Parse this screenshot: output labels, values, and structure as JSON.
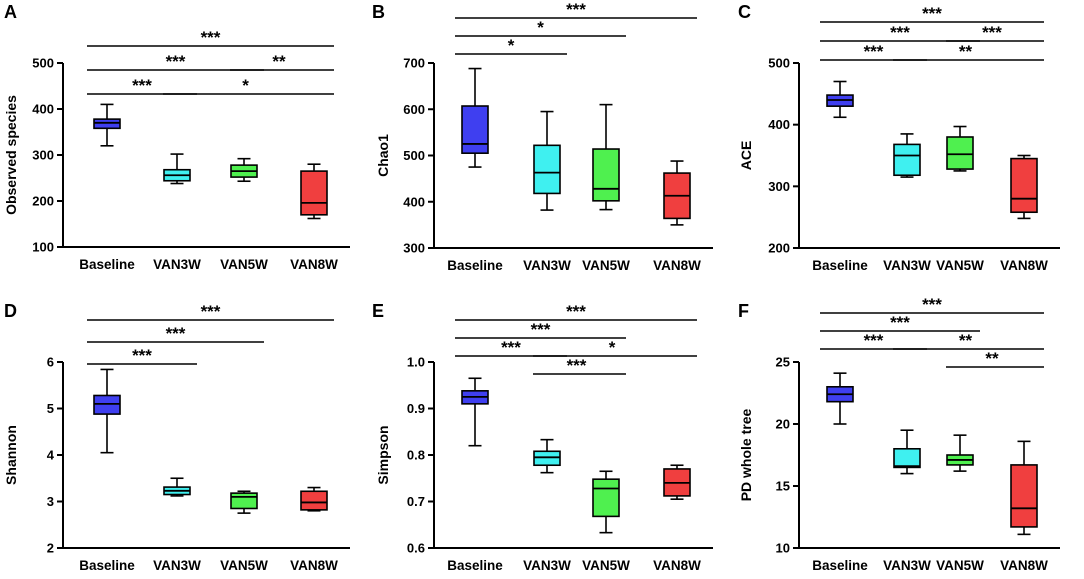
{
  "palette": {
    "Baseline": "#3f3ff0",
    "VAN3W": "#3ff0f0",
    "VAN5W": "#4ff04f",
    "VAN8W": "#f03f3f"
  },
  "chart_data": [
    {
      "panel": "A",
      "type": "box",
      "ylabel": "Observed species",
      "categories": [
        "Baseline",
        "VAN3W",
        "VAN5W",
        "VAN8W"
      ],
      "ylim": [
        100,
        500
      ],
      "yticks": [
        100,
        200,
        300,
        400,
        500
      ],
      "boxes": [
        {
          "min": 320,
          "q1": 358,
          "median": 370,
          "q3": 378,
          "max": 410
        },
        {
          "min": 238,
          "q1": 244,
          "median": 256,
          "q3": 268,
          "max": 302
        },
        {
          "min": 243,
          "q1": 252,
          "median": 265,
          "q3": 278,
          "max": 292
        },
        {
          "min": 162,
          "q1": 170,
          "median": 196,
          "q3": 265,
          "max": 280
        }
      ],
      "comparisons": [
        {
          "from": 0,
          "to": 3,
          "label": "***",
          "level": 0
        },
        {
          "from": 0,
          "to": 2,
          "label": "***",
          "level": 1
        },
        {
          "from": 2,
          "to": 3,
          "label": "**",
          "level": 1
        },
        {
          "from": 0,
          "to": 1,
          "label": "***",
          "level": 2
        },
        {
          "from": 1,
          "to": 3,
          "label": "*",
          "level": 2
        }
      ]
    },
    {
      "panel": "B",
      "type": "box",
      "ylabel": "Chao1",
      "categories": [
        "Baseline",
        "VAN3W",
        "VAN5W",
        "VAN8W"
      ],
      "ylim": [
        300,
        700
      ],
      "yticks": [
        300,
        400,
        500,
        600,
        700
      ],
      "boxes": [
        {
          "min": 475,
          "q1": 505,
          "median": 525,
          "q3": 607,
          "max": 688
        },
        {
          "min": 382,
          "q1": 418,
          "median": 463,
          "q3": 522,
          "max": 595
        },
        {
          "min": 383,
          "q1": 402,
          "median": 428,
          "q3": 514,
          "max": 610
        },
        {
          "min": 350,
          "q1": 364,
          "median": 413,
          "q3": 462,
          "max": 488
        }
      ],
      "comparisons": [
        {
          "from": 0,
          "to": 3,
          "label": "***",
          "level": 0
        },
        {
          "from": 0,
          "to": 2,
          "label": "*",
          "level": 1
        },
        {
          "from": 0,
          "to": 1,
          "label": "*",
          "level": 2
        }
      ]
    },
    {
      "panel": "C",
      "type": "box",
      "ylabel": "ACE",
      "categories": [
        "Baseline",
        "VAN3W",
        "VAN5W",
        "VAN8W"
      ],
      "ylim": [
        200,
        500
      ],
      "yticks": [
        200,
        300,
        400,
        500
      ],
      "boxes": [
        {
          "min": 412,
          "q1": 430,
          "median": 440,
          "q3": 448,
          "max": 470
        },
        {
          "min": 315,
          "q1": 318,
          "median": 350,
          "q3": 368,
          "max": 385
        },
        {
          "min": 325,
          "q1": 328,
          "median": 352,
          "q3": 380,
          "max": 397
        },
        {
          "min": 248,
          "q1": 258,
          "median": 280,
          "q3": 345,
          "max": 350
        }
      ],
      "comparisons": [
        {
          "from": 0,
          "to": 3,
          "label": "***",
          "level": 0
        },
        {
          "from": 0,
          "to": 2,
          "label": "***",
          "level": 1
        },
        {
          "from": 2,
          "to": 3,
          "label": "***",
          "level": 1
        },
        {
          "from": 0,
          "to": 1,
          "label": "***",
          "level": 2
        },
        {
          "from": 1,
          "to": 3,
          "label": "**",
          "level": 2
        }
      ]
    },
    {
      "panel": "D",
      "type": "box",
      "ylabel": "Shannon",
      "categories": [
        "Baseline",
        "VAN3W",
        "VAN5W",
        "VAN8W"
      ],
      "ylim": [
        2,
        6
      ],
      "yticks": [
        2,
        3,
        4,
        5,
        6
      ],
      "boxes": [
        {
          "min": 4.05,
          "q1": 4.88,
          "median": 5.1,
          "q3": 5.28,
          "max": 5.84
        },
        {
          "min": 3.12,
          "q1": 3.15,
          "median": 3.23,
          "q3": 3.31,
          "max": 3.5
        },
        {
          "min": 2.75,
          "q1": 2.85,
          "median": 3.1,
          "q3": 3.18,
          "max": 3.22
        },
        {
          "min": 2.8,
          "q1": 2.82,
          "median": 2.98,
          "q3": 3.22,
          "max": 3.3
        }
      ],
      "comparisons": [
        {
          "from": 0,
          "to": 3,
          "label": "***",
          "level": 0
        },
        {
          "from": 0,
          "to": 2,
          "label": "***",
          "level": 1
        },
        {
          "from": 0,
          "to": 1,
          "label": "***",
          "level": 2
        }
      ]
    },
    {
      "panel": "E",
      "type": "box",
      "ylabel": "Simpson",
      "categories": [
        "Baseline",
        "VAN3W",
        "VAN5W",
        "VAN8W"
      ],
      "ylim": [
        0.6,
        1.0
      ],
      "yticks": [
        0.6,
        0.7,
        0.8,
        0.9,
        1.0
      ],
      "tick_decimals": 1,
      "boxes": [
        {
          "min": 0.82,
          "q1": 0.91,
          "median": 0.925,
          "q3": 0.938,
          "max": 0.965
        },
        {
          "min": 0.762,
          "q1": 0.778,
          "median": 0.795,
          "q3": 0.808,
          "max": 0.833
        },
        {
          "min": 0.633,
          "q1": 0.668,
          "median": 0.728,
          "q3": 0.748,
          "max": 0.765
        },
        {
          "min": 0.705,
          "q1": 0.712,
          "median": 0.74,
          "q3": 0.77,
          "max": 0.778
        }
      ],
      "comparisons": [
        {
          "from": 0,
          "to": 3,
          "label": "***",
          "level": 0
        },
        {
          "from": 0,
          "to": 2,
          "label": "***",
          "level": 1
        },
        {
          "from": 0,
          "to": 1,
          "label": "***",
          "level": 2
        },
        {
          "from": 1,
          "to": 3,
          "label": "*",
          "level": 2
        },
        {
          "from": 1,
          "to": 2,
          "label": "***",
          "level": 3
        }
      ]
    },
    {
      "panel": "F",
      "type": "box",
      "ylabel": "PD whole tree",
      "categories": [
        "Baseline",
        "VAN3W",
        "VAN5W",
        "VAN8W"
      ],
      "ylim": [
        10,
        25
      ],
      "yticks": [
        10,
        15,
        20,
        25
      ],
      "boxes": [
        {
          "min": 20.0,
          "q1": 21.8,
          "median": 22.4,
          "q3": 23.0,
          "max": 24.1
        },
        {
          "min": 16.0,
          "q1": 16.5,
          "median": 16.6,
          "q3": 18.0,
          "max": 19.5
        },
        {
          "min": 16.2,
          "q1": 16.7,
          "median": 17.1,
          "q3": 17.5,
          "max": 19.1
        },
        {
          "min": 11.1,
          "q1": 11.7,
          "median": 13.2,
          "q3": 16.7,
          "max": 18.6
        }
      ],
      "comparisons": [
        {
          "from": 0,
          "to": 3,
          "label": "***",
          "level": 0
        },
        {
          "from": 0,
          "to": 2,
          "label": "***",
          "level": 1
        },
        {
          "from": 0,
          "to": 1,
          "label": "***",
          "level": 2
        },
        {
          "from": 1,
          "to": 3,
          "label": "**",
          "level": 2
        },
        {
          "from": 2,
          "to": 3,
          "label": "**",
          "level": 3
        }
      ]
    }
  ]
}
